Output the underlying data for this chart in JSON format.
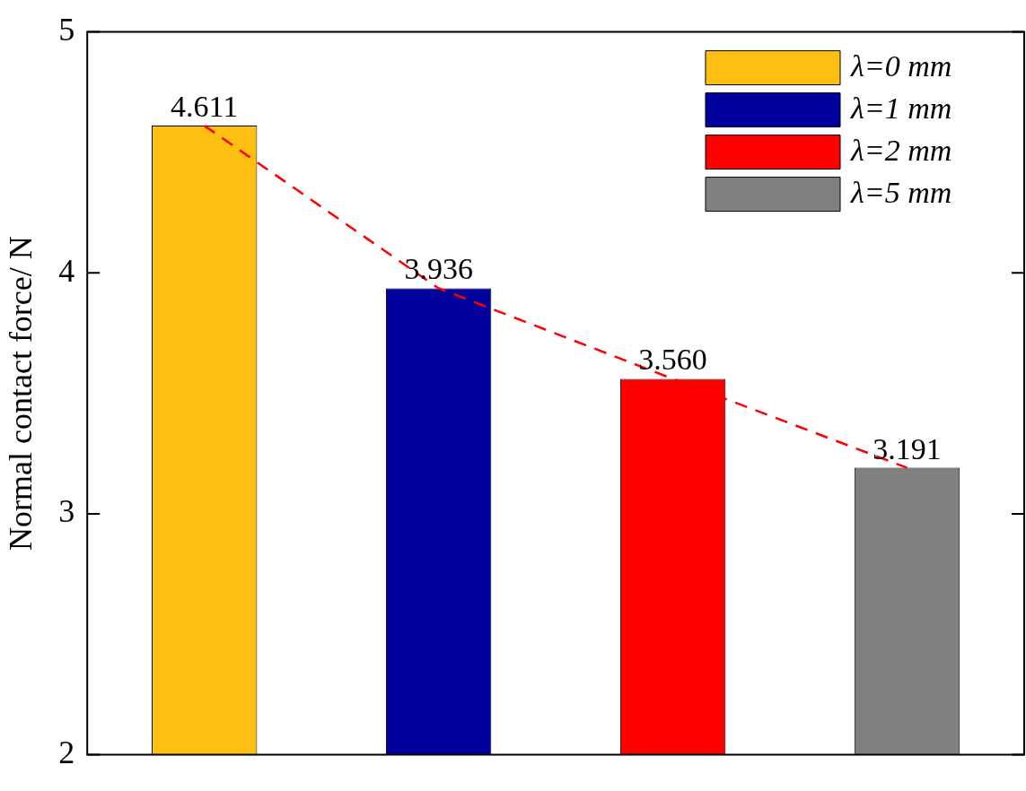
{
  "chart_data": {
    "type": "bar",
    "ylabel": "Normal contact force/ N",
    "categories": [
      null,
      null,
      null,
      null
    ],
    "series": [
      {
        "name": "λ=0 mm",
        "color": "#fcbf12",
        "values": [
          4.611,
          null,
          null,
          null
        ]
      },
      {
        "name": "λ=1 mm",
        "color": "#00009c",
        "values": [
          null,
          3.936,
          null,
          null
        ]
      },
      {
        "name": "λ=2 mm",
        "color": "#ff0000",
        "values": [
          null,
          null,
          3.56,
          null
        ]
      },
      {
        "name": "λ=5 mm",
        "color": "#808080",
        "values": [
          null,
          null,
          null,
          3.191
        ]
      },
      {
        "type": "line",
        "color": "#ff0000",
        "values": [
          4.611,
          3.936,
          3.56,
          3.191
        ],
        "line_style": "dashed",
        "marker": "none"
      }
    ],
    "value_labels": [
      "4.611",
      "3.936",
      "3.560",
      "3.191"
    ],
    "ylim": [
      2,
      5
    ],
    "yticks": [
      2,
      3,
      4,
      5
    ],
    "grid": false,
    "legend": "top right"
  }
}
